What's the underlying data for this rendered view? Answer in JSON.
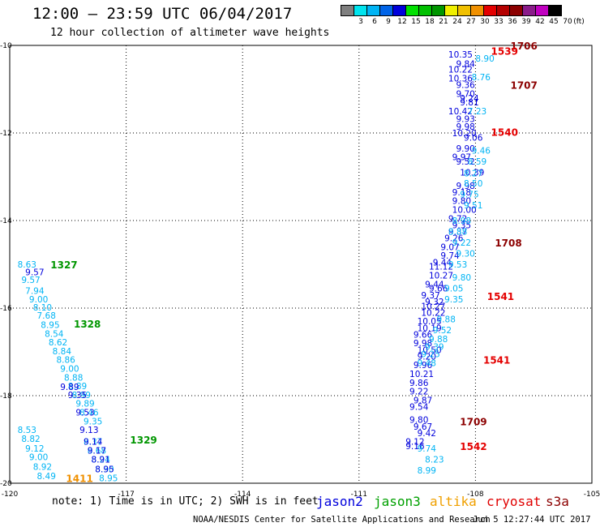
{
  "header": {
    "title": "12:00 – 23:59 UTC 06/04/2017",
    "subtitle": "12 hour collection of altimeter wave heights"
  },
  "legend": {
    "unit_label": "(ft)",
    "bins": [
      {
        "label": "",
        "color": "#7f7f7f"
      },
      {
        "label": "3",
        "color": "#00e4ee"
      },
      {
        "label": "6",
        "color": "#00b4f4"
      },
      {
        "label": "9",
        "color": "#0064e8"
      },
      {
        "label": "12",
        "color": "#0000dc"
      },
      {
        "label": "15",
        "color": "#00e000"
      },
      {
        "label": "18",
        "color": "#00c000"
      },
      {
        "label": "21",
        "color": "#009600"
      },
      {
        "label": "24",
        "color": "#f0f000"
      },
      {
        "label": "27",
        "color": "#f0c000"
      },
      {
        "label": "30",
        "color": "#f09000"
      },
      {
        "label": "33",
        "color": "#e40000"
      },
      {
        "label": "36",
        "color": "#b40000"
      },
      {
        "label": "39",
        "color": "#8c0000"
      },
      {
        "label": "42",
        "color": "#8a1c8a"
      },
      {
        "label": "45",
        "color": "#c000c0"
      },
      {
        "label": "70",
        "color": "#000000"
      }
    ]
  },
  "footer": {
    "note": "note: 1) Time is in UTC; 2) SWH is in feet",
    "satellites": [
      {
        "name": "jason2",
        "color": "#0000dc"
      },
      {
        "name": "jason3",
        "color": "#00a000"
      },
      {
        "name": "altika",
        "color": "#f0a000"
      },
      {
        "name": "cryosat",
        "color": "#e00000"
      },
      {
        "name": "s3a",
        "color": "#8c0000"
      }
    ],
    "credit": "NOAA/NESDIS Center for Satellite Applications and Research",
    "timestamp": "Jun  5 12:27:44 UTC 2017"
  },
  "chart_data": {
    "type": "scatter",
    "title": "12:00 – 23:59 UTC 06/04/2017",
    "subtitle": "12 hour collection of altimeter wave heights",
    "xlim": [
      -120,
      -105
    ],
    "ylim": [
      -20,
      -10
    ],
    "x_ticks": [
      "-120",
      "-117",
      "-114",
      "-111",
      "-108",
      "-105"
    ],
    "y_ticks": [
      "-10",
      "-12",
      "-14",
      "-16",
      "-18",
      "-20"
    ],
    "grid": true,
    "colors": {
      "c9": "#00b4f4",
      "c12": "#0000dc",
      "jason3": "#009600",
      "altika": "#f09000",
      "cryosat": "#e40000",
      "s3a": "#8c0000"
    },
    "series": [
      {
        "color": "c9",
        "lon": [
          -119.8,
          -119.7,
          -119.6,
          -119.5,
          -119.4,
          -119.3,
          -119.2,
          -119.1,
          -119.0,
          -118.9,
          -118.8,
          -118.7,
          -118.6,
          -118.5,
          -118.4,
          -118.3,
          -118.2,
          -118.1,
          -119.8,
          -119.7,
          -119.6,
          -119.5,
          -119.4,
          -119.3,
          -118.1,
          -118.0,
          -117.9,
          -117.8,
          -117.7
        ],
        "lat": [
          -15.0,
          -15.35,
          -15.6,
          -15.8,
          -15.98,
          -16.17,
          -16.38,
          -16.58,
          -16.78,
          -16.98,
          -17.18,
          -17.38,
          -17.58,
          -17.78,
          -17.98,
          -18.18,
          -18.38,
          -18.58,
          -18.78,
          -18.98,
          -19.2,
          -19.4,
          -19.62,
          -19.83,
          -19.05,
          -19.25,
          -19.45,
          -19.68,
          -19.88
        ],
        "labels": [
          "8.63",
          "9.57",
          "7.94",
          "9.00",
          "8.10",
          "7.68",
          "8.95",
          "8.54",
          "8.62",
          "8.84",
          "8.86",
          "9.00",
          "8.88",
          "8.89",
          "8.99",
          "9.89",
          "8.46",
          "9.35",
          "8.53",
          "8.82",
          "9.12",
          "9.00",
          "8.92",
          "8.49",
          "8.37",
          "8.68",
          "8.24",
          "8.30",
          "8.95"
        ]
      },
      {
        "color": "c12",
        "lon": [
          -119.6,
          -118.7,
          -118.5,
          -118.3,
          -118.2,
          -118.1,
          -118.0,
          -117.9,
          -117.8
        ],
        "lat": [
          -15.18,
          -17.8,
          -17.98,
          -18.38,
          -18.78,
          -19.05,
          -19.25,
          -19.45,
          -19.68
        ],
        "labels": [
          "9.57",
          "9.89",
          "9.35",
          "9.53",
          "9.13",
          "9.14",
          "9.17",
          "8.91",
          "8.95"
        ]
      },
      {
        "color": "c12",
        "lon": [
          -108.7,
          -108.7,
          -108.5,
          -108.7,
          -108.5,
          -108.5,
          -108.4,
          -108.7,
          -108.4,
          -108.5,
          -108.5,
          -108.3,
          -108.6,
          -108.5,
          -108.5,
          -108.4,
          -108.6,
          -108.5,
          -108.6,
          -108.6,
          -108.6,
          -108.7,
          -108.6,
          -108.7,
          -108.8,
          -108.9,
          -108.9,
          -109.1,
          -109.2,
          -109.2,
          -109.3,
          -109.2,
          -109.4,
          -109.3,
          -109.4,
          -109.4,
          -109.5,
          -109.5,
          -109.6,
          -109.6,
          -109.5,
          -109.5,
          -109.6,
          -109.7,
          -109.7,
          -109.7,
          -109.6,
          -109.7,
          -109.7,
          -109.6,
          -109.5,
          -109.8,
          -109.8
        ],
        "lat": [
          -10.2,
          -10.55,
          -10.42,
          -10.75,
          -10.9,
          -11.1,
          -11.2,
          -11.5,
          -11.3,
          -11.68,
          -11.85,
          -12.1,
          -12.0,
          -12.35,
          -12.65,
          -12.9,
          -12.55,
          -13.2,
          -13.35,
          -13.55,
          -13.75,
          -13.95,
          -14.1,
          -14.25,
          -14.4,
          -14.6,
          -14.8,
          -14.95,
          -15.05,
          -15.25,
          -15.45,
          -15.55,
          -15.7,
          -15.85,
          -15.95,
          -16.1,
          -16.3,
          -16.45,
          -16.6,
          -16.8,
          -16.95,
          -17.1,
          -17.3,
          -17.5,
          -17.7,
          -17.9,
          -18.1,
          -18.25,
          -18.55,
          -18.7,
          -18.85,
          -19.05,
          -19.15
        ],
        "labels": [
          "10.35",
          "10.22",
          "9.84",
          "10.36",
          "9.36",
          "9.70",
          "9.24",
          "10.42",
          "9.81",
          "9.93",
          "9.98",
          "9.06",
          "10.20",
          "9.90",
          "9.52",
          "10.39",
          "9.97",
          "9.98",
          "9.18",
          "9.80",
          "10.00",
          "9.72",
          "9.35",
          "9.37",
          "9.26",
          "9.07",
          "9.74",
          "9.44",
          "11.12",
          "10.27",
          "9.44",
          "9.66",
          "9.37",
          "9.32",
          "10.27",
          "10.22",
          "10.05",
          "10.19",
          "9.66",
          "9.98",
          "10.50",
          "9.20",
          "9.96",
          "10.21",
          "9.86",
          "9.22",
          "9.87",
          "9.54",
          "9.80",
          "9.67",
          "9.42",
          "9.12",
          "9.16"
        ]
      },
      {
        "color": "c9",
        "lon": [
          -108.0,
          -108.1,
          -108.2,
          -108.1,
          -108.2,
          -108.3,
          -108.3,
          -108.4,
          -108.3,
          -108.6,
          -108.7,
          -108.6,
          -108.5,
          -108.7,
          -108.6,
          -108.8,
          -108.8,
          -109.0,
          -109.1,
          -109.2,
          -109.3,
          -109.4,
          -109.5,
          -109.3,
          -109.5,
          -109.5
        ],
        "lat": [
          -10.3,
          -10.72,
          -11.5,
          -12.4,
          -12.65,
          -12.92,
          -13.15,
          -13.4,
          -13.65,
          -14.0,
          -14.25,
          -14.5,
          -14.75,
          -15.0,
          -15.3,
          -15.55,
          -15.8,
          -16.25,
          -16.5,
          -16.7,
          -16.88,
          -17.05,
          -17.25,
          -19.45,
          -19.2,
          -19.7
        ],
        "labels": [
          "8.90",
          "8.76",
          "7.23",
          "9.46",
          "8.59",
          "8.27",
          "8.50",
          "9.75",
          "9.51",
          "8.98",
          "8.88",
          "9.22",
          "9.30",
          "9.53",
          "9.80",
          "9.05",
          "9.35",
          "9.88",
          "9.52",
          "9.88",
          "9.39",
          "9.25",
          "9.48",
          "8.23",
          "9.74",
          "8.99"
        ]
      }
    ],
    "times": [
      {
        "label": "1706",
        "lon": -107.1,
        "lat": -10.0,
        "sat": "s3a"
      },
      {
        "label": "1539",
        "lon": -107.6,
        "lat": -10.12,
        "sat": "cryosat"
      },
      {
        "label": "1707",
        "lon": -107.1,
        "lat": -10.9,
        "sat": "s3a"
      },
      {
        "label": "1540",
        "lon": -107.6,
        "lat": -11.97,
        "sat": "cryosat"
      },
      {
        "label": "1708",
        "lon": -107.5,
        "lat": -14.5,
        "sat": "s3a"
      },
      {
        "label": "1541",
        "lon": -107.7,
        "lat": -15.72,
        "sat": "cryosat"
      },
      {
        "label": "1541",
        "lon": -107.8,
        "lat": -17.18,
        "sat": "cryosat"
      },
      {
        "label": "1709",
        "lon": -108.4,
        "lat": -18.58,
        "sat": "s3a"
      },
      {
        "label": "1542",
        "lon": -108.4,
        "lat": -19.15,
        "sat": "cryosat"
      },
      {
        "label": "1327",
        "lon": -118.95,
        "lat": -15.0,
        "sat": "jason3"
      },
      {
        "label": "1328",
        "lon": -118.35,
        "lat": -16.35,
        "sat": "jason3"
      },
      {
        "label": "1329",
        "lon": -116.9,
        "lat": -19.0,
        "sat": "jason3"
      },
      {
        "label": "1411",
        "lon": -118.55,
        "lat": -19.88,
        "sat": "altika"
      }
    ]
  }
}
